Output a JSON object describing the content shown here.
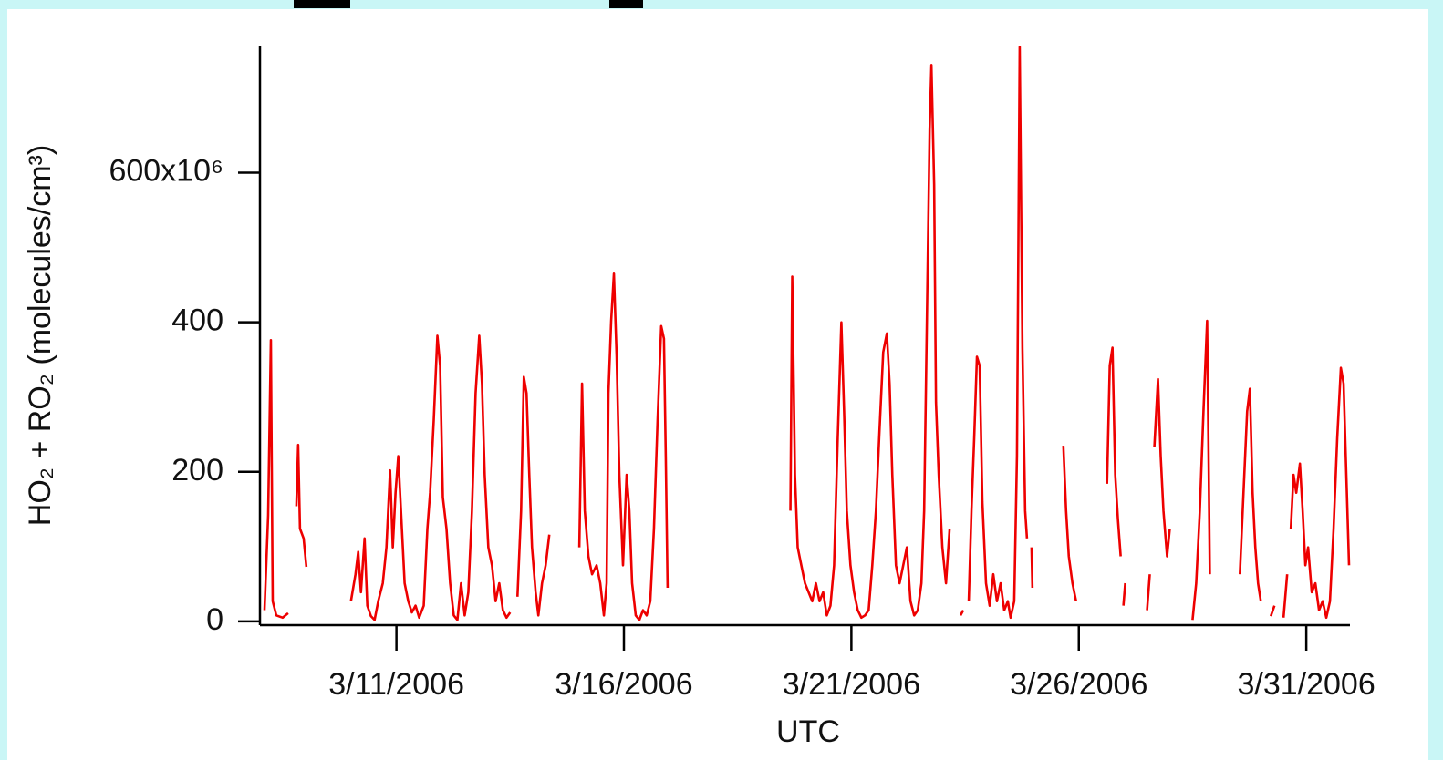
{
  "chart_data": {
    "type": "line",
    "x_label": "UTC",
    "y_label": "HO₂ + RO₂ (molecules/cm³)",
    "xlim": [
      8,
      31.96
    ],
    "xticks": [
      {
        "value": 11,
        "label": "3/11/2006"
      },
      {
        "value": 16,
        "label": "3/16/2006"
      },
      {
        "value": 21,
        "label": "3/21/2006"
      },
      {
        "value": 26,
        "label": "3/26/2006"
      },
      {
        "value": 31,
        "label": "3/31/2006"
      }
    ],
    "ylim": [
      -5,
      770
    ],
    "yticks": [
      0,
      200,
      400,
      {
        "value": 600,
        "label": "600x10⁶"
      }
    ],
    "grid": false,
    "series": [
      {
        "color": "#ee0000",
        "x": [
          8.1,
          8.18,
          8.24,
          8.28,
          8.36,
          8.5,
          8.62,
          8.7,
          8.8,
          8.84,
          8.88,
          8.96,
          9.02,
          9.5,
          10,
          10.1,
          10.16,
          10.22,
          10.3,
          10.36,
          10.44,
          10.52,
          10.6,
          10.7,
          10.78,
          10.86,
          10.92,
          10.98,
          11.04,
          11.1,
          11.18,
          11.26,
          11.34,
          11.42,
          11.5,
          11.6,
          11.68,
          11.74,
          11.82,
          11.9,
          11.96,
          12.02,
          12.1,
          12.18,
          12.26,
          12.34,
          12.42,
          12.5,
          12.58,
          12.66,
          12.74,
          12.82,
          12.88,
          12.94,
          13.02,
          13.1,
          13.18,
          13.26,
          13.34,
          13.42,
          13.5,
          13.58,
          13.66,
          13.74,
          13.8,
          13.86,
          13.92,
          13.98,
          14.06,
          14.12,
          14.2,
          14.28,
          14.36,
          14.7,
          15.02,
          15.08,
          15.14,
          15.22,
          15.3,
          15.4,
          15.48,
          15.56,
          15.62,
          15.66,
          15.72,
          15.78,
          15.84,
          15.9,
          15.98,
          16.06,
          16.12,
          16.18,
          16.26,
          16.34,
          16.42,
          16.5,
          16.58,
          16.66,
          16.74,
          16.82,
          16.88,
          16.92,
          16.96,
          18.3,
          19.66,
          19.7,
          19.76,
          19.82,
          19.9,
          19.98,
          20.06,
          20.14,
          20.22,
          20.3,
          20.38,
          20.46,
          20.54,
          20.62,
          20.7,
          20.78,
          20.84,
          20.9,
          20.98,
          21.06,
          21.14,
          21.22,
          21.3,
          21.38,
          21.46,
          21.54,
          21.62,
          21.7,
          21.78,
          21.84,
          21.9,
          21.98,
          22.06,
          22.14,
          22.22,
          22.3,
          22.38,
          22.46,
          22.54,
          22.6,
          22.66,
          22.72,
          22.76,
          22.82,
          22.86,
          22.92,
          23,
          23.08,
          23.16,
          23.28,
          23.4,
          23.46,
          23.52,
          23.58,
          23.64,
          23.7,
          23.76,
          23.82,
          23.88,
          23.96,
          24.04,
          24.12,
          24.2,
          24.28,
          24.36,
          24.44,
          24.5,
          24.58,
          24.64,
          24.7,
          24.76,
          24.82,
          24.86,
          24.91,
          24.96,
          24.98,
          25.3,
          25.66,
          25.72,
          25.78,
          25.86,
          25.94,
          26.3,
          26.62,
          26.68,
          26.74,
          26.8,
          26.86,
          26.92,
          26.95,
          26.98,
          27.02,
          27.26,
          27.5,
          27.56,
          27.61,
          27.66,
          27.74,
          27.8,
          27.86,
          27.94,
          28,
          28.25,
          28.5,
          28.58,
          28.66,
          28.74,
          28.82,
          28.88,
          29.2,
          29.54,
          29.62,
          29.7,
          29.76,
          29.82,
          29.88,
          29.94,
          30,
          30.1,
          30.22,
          30.3,
          30.4,
          30.5,
          30.58,
          30.62,
          30.66,
          30.72,
          30.78,
          30.86,
          30.92,
          30.98,
          31.04,
          31.12,
          31.2,
          31.28,
          31.36,
          31.44,
          31.52,
          31.6,
          31.68,
          31.76,
          31.82,
          31.88,
          31.94
        ],
        "values": [
          15,
          142,
          376,
          27,
          8,
          5,
          11,
          null,
          154,
          236,
          124,
          111,
          73,
          null,
          27,
          63,
          93,
          39,
          111,
          21,
          7,
          2,
          27,
          51,
          99,
          202,
          99,
          172,
          221,
          148,
          51,
          27,
          12,
          21,
          5,
          21,
          124,
          172,
          269,
          382,
          342,
          166,
          124,
          51,
          8,
          2,
          51,
          8,
          39,
          148,
          305,
          382,
          318,
          196,
          99,
          75,
          27,
          51,
          15,
          5,
          12,
          null,
          33,
          148,
          327,
          305,
          196,
          99,
          39,
          8,
          51,
          75,
          116,
          null,
          99,
          318,
          148,
          87,
          63,
          75,
          51,
          8,
          51,
          305,
          402,
          465,
          354,
          196,
          75,
          196,
          148,
          51,
          8,
          2,
          15,
          8,
          27,
          124,
          269,
          395,
          378,
          221,
          45,
          null,
          148,
          461,
          196,
          99,
          75,
          51,
          39,
          27,
          51,
          27,
          39,
          8,
          21,
          75,
          245,
          400,
          281,
          148,
          75,
          39,
          15,
          5,
          8,
          15,
          75,
          148,
          257,
          360,
          385,
          318,
          196,
          75,
          51,
          75,
          99,
          27,
          8,
          15,
          51,
          148,
          402,
          657,
          744,
          584,
          293,
          196,
          99,
          51,
          124,
          null,
          8,
          15,
          null,
          27,
          148,
          245,
          354,
          342,
          160,
          51,
          21,
          63,
          27,
          51,
          15,
          27,
          5,
          27,
          221,
          768,
          366,
          148,
          111,
          null,
          99,
          45,
          null,
          235,
          148,
          87,
          51,
          27,
          null,
          184,
          342,
          366,
          196,
          136,
          87,
          null,
          21,
          51,
          null,
          15,
          63,
          null,
          233,
          324,
          221,
          148,
          87,
          124,
          null,
          2,
          51,
          148,
          281,
          402,
          63,
          null,
          63,
          172,
          281,
          311,
          172,
          99,
          51,
          27,
          null,
          7,
          21,
          null,
          5,
          63,
          null,
          124,
          196,
          172,
          211,
          148,
          75,
          99,
          39,
          51,
          15,
          27,
          5,
          27,
          124,
          245,
          339,
          318,
          196,
          75
        ]
      }
    ]
  }
}
